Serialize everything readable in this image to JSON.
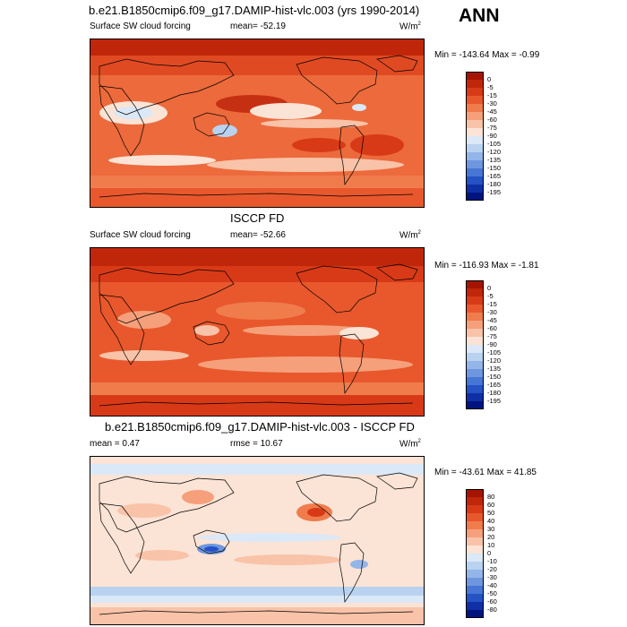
{
  "season": "ANN",
  "panels": [
    {
      "id": "model",
      "title": "b.e21.B1850cmip6.f09_g17.DAMIP-hist-vlc.003 (yrs 1990-2014)",
      "left_label": "Surface SW cloud forcing",
      "center_label": "mean= -52.19",
      "units": "W/m",
      "units_sup": "2",
      "minmax": "Min = -143.64 Max =  -0.99",
      "colorbar": {
        "labels": [
          "0",
          "-5",
          "-15",
          "-30",
          "-45",
          "-60",
          "-75",
          "-90",
          "-105",
          "-120",
          "-135",
          "-150",
          "-165",
          "-180",
          "-195"
        ],
        "colors": [
          "#a51400",
          "#c0270a",
          "#d83a17",
          "#e8582c",
          "#f07c4c",
          "#f5a07a",
          "#f8c3a8",
          "#fbe3d5",
          "#dbe8f7",
          "#b9d2f0",
          "#93b5e8",
          "#6e97df",
          "#4876d4",
          "#2552c4",
          "#0f2fa6",
          "#001480"
        ]
      }
    },
    {
      "id": "obs",
      "title": "ISCCP FD",
      "left_label": "Surface SW cloud forcing",
      "center_label": "mean= -52.66",
      "units": "W/m",
      "units_sup": "2",
      "minmax": "Min = -116.93 Max =  -1.81",
      "colorbar": {
        "labels": [
          "0",
          "-5",
          "-15",
          "-30",
          "-45",
          "-60",
          "-75",
          "-90",
          "-105",
          "-120",
          "-135",
          "-150",
          "-165",
          "-180",
          "-195"
        ],
        "colors": [
          "#a51400",
          "#c0270a",
          "#d83a17",
          "#e8582c",
          "#f07c4c",
          "#f5a07a",
          "#f8c3a8",
          "#fbe3d5",
          "#dbe8f7",
          "#b9d2f0",
          "#93b5e8",
          "#6e97df",
          "#4876d4",
          "#2552c4",
          "#0f2fa6",
          "#001480"
        ]
      }
    },
    {
      "id": "diff",
      "title": "b.e21.B1850cmip6.f09_g17.DAMIP-hist-vlc.003 - ISCCP FD",
      "left_label": "mean =  0.47",
      "center_label": "rmse =  10.67",
      "units": "W/m",
      "units_sup": "2",
      "minmax": "Min = -43.61 Max =  41.85",
      "colorbar": {
        "labels": [
          "80",
          "60",
          "50",
          "40",
          "30",
          "20",
          "10",
          "0",
          "-10",
          "-20",
          "-30",
          "-40",
          "-50",
          "-60",
          "-80"
        ],
        "colors": [
          "#a51400",
          "#c0270a",
          "#d83a17",
          "#e8582c",
          "#f07c4c",
          "#f5a07a",
          "#f8c3a8",
          "#fbe3d5",
          "#dbe8f7",
          "#b9d2f0",
          "#93b5e8",
          "#6e97df",
          "#4876d4",
          "#2552c4",
          "#0f2fa6",
          "#001480"
        ]
      }
    }
  ]
}
